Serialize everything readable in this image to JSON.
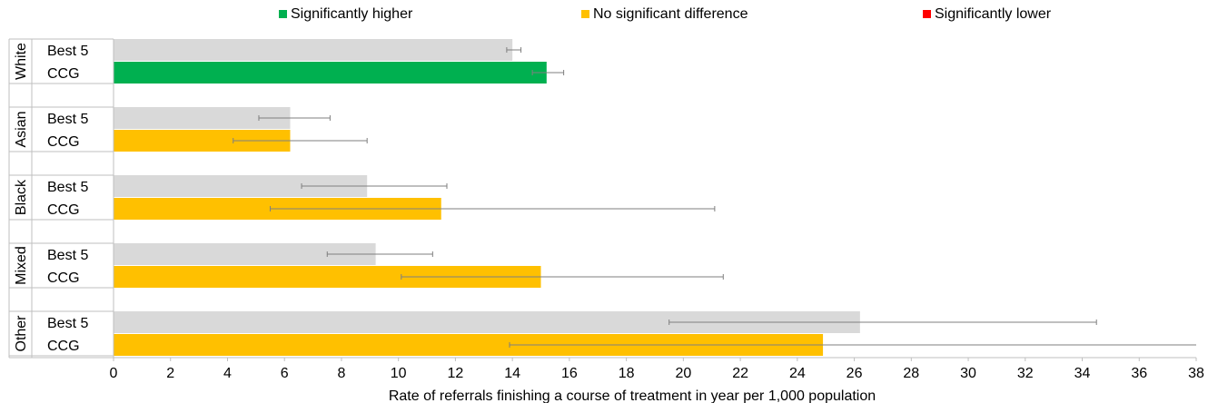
{
  "chart_data": {
    "type": "bar",
    "orientation": "horizontal",
    "xlabel": "Rate of referrals finishing a course of treatment in year per 1,000 population",
    "xlim": [
      0,
      38
    ],
    "xticks": [
      0,
      2,
      4,
      6,
      8,
      10,
      12,
      14,
      16,
      18,
      20,
      22,
      24,
      26,
      28,
      30,
      32,
      34,
      36,
      38
    ],
    "grid": false,
    "legend_position": "top",
    "legend": [
      {
        "label": "Significantly higher",
        "color": "#00b050"
      },
      {
        "label": "No significant difference",
        "color": "#ffc000"
      },
      {
        "label": "Significantly lower",
        "color": "#ff0000"
      }
    ],
    "best5_color": "#d9d9d9",
    "groups": [
      {
        "name": "White",
        "bars": [
          {
            "label": "Best 5",
            "value": 14.0,
            "ci": [
              13.8,
              14.3
            ],
            "status": "best5"
          },
          {
            "label": "CCG",
            "value": 15.2,
            "ci": [
              14.7,
              15.8
            ],
            "status": "higher"
          }
        ]
      },
      {
        "name": "Asian",
        "bars": [
          {
            "label": "Best 5",
            "value": 6.2,
            "ci": [
              5.1,
              7.6
            ],
            "status": "best5"
          },
          {
            "label": "CCG",
            "value": 6.2,
            "ci": [
              4.2,
              8.9
            ],
            "status": "nodiff"
          }
        ]
      },
      {
        "name": "Black",
        "bars": [
          {
            "label": "Best 5",
            "value": 8.9,
            "ci": [
              6.6,
              11.7
            ],
            "status": "best5"
          },
          {
            "label": "CCG",
            "value": 11.5,
            "ci": [
              5.5,
              21.1
            ],
            "status": "nodiff"
          }
        ]
      },
      {
        "name": "Mixed",
        "bars": [
          {
            "label": "Best 5",
            "value": 9.2,
            "ci": [
              7.5,
              11.2
            ],
            "status": "best5"
          },
          {
            "label": "CCG",
            "value": 15.0,
            "ci": [
              10.1,
              21.4
            ],
            "status": "nodiff"
          }
        ]
      },
      {
        "name": "Other",
        "bars": [
          {
            "label": "Best 5",
            "value": 26.2,
            "ci": [
              19.5,
              34.5
            ],
            "status": "best5"
          },
          {
            "label": "CCG",
            "value": 24.9,
            "ci": [
              13.9,
              38.0
            ],
            "status": "nodiff"
          }
        ]
      }
    ]
  }
}
